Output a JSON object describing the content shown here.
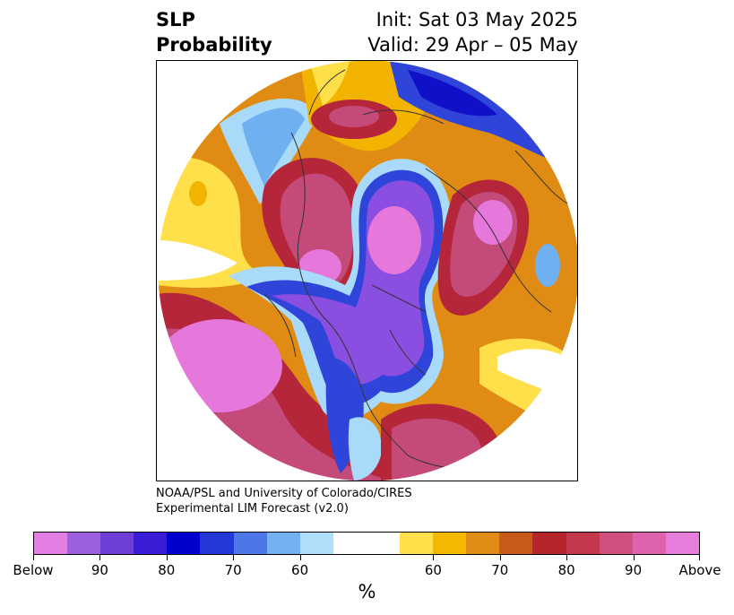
{
  "header": {
    "variable": "SLP",
    "product": "Probability",
    "init": "Init: Sat 03 May 2025",
    "valid": "Valid: 29 Apr – 05 May"
  },
  "credits": {
    "line1": "NOAA/PSL and University of Colorado/CIRES",
    "line2": "Experimental LIM Forecast (v2.0)"
  },
  "colorbar": {
    "colors": [
      "#e37ee3",
      "#9b5fe0",
      "#6d3fd8",
      "#3a1bd6",
      "#0000cc",
      "#2438d8",
      "#4d77e8",
      "#74b1f2",
      "#b0dffb",
      "#ffffff",
      "#ffffff",
      "#ffe04a",
      "#f5b800",
      "#e08c14",
      "#c85a1a",
      "#b5252a",
      "#c4384e",
      "#d05080",
      "#de63ad",
      "#e77dda"
    ],
    "tick_labels": [
      "Below",
      "90",
      "80",
      "70",
      "60",
      "60",
      "70",
      "80",
      "90",
      "Above"
    ],
    "unit": "%"
  },
  "map": {
    "projection": "north-polar-stereographic",
    "palette": {
      "pink": "#e678dc",
      "magenta": "#c44a7a",
      "red": "#b6263a",
      "orange": "#d97a16",
      "gold": "#f2b400",
      "yellow": "#ffe04a",
      "lightblue": "#a9dafa",
      "skyblue": "#6fb0f0",
      "blue": "#2f45da",
      "darkblue": "#1010c8",
      "violet": "#8a4ee0",
      "purple": "#a45ee6",
      "coast": "#333333"
    }
  }
}
